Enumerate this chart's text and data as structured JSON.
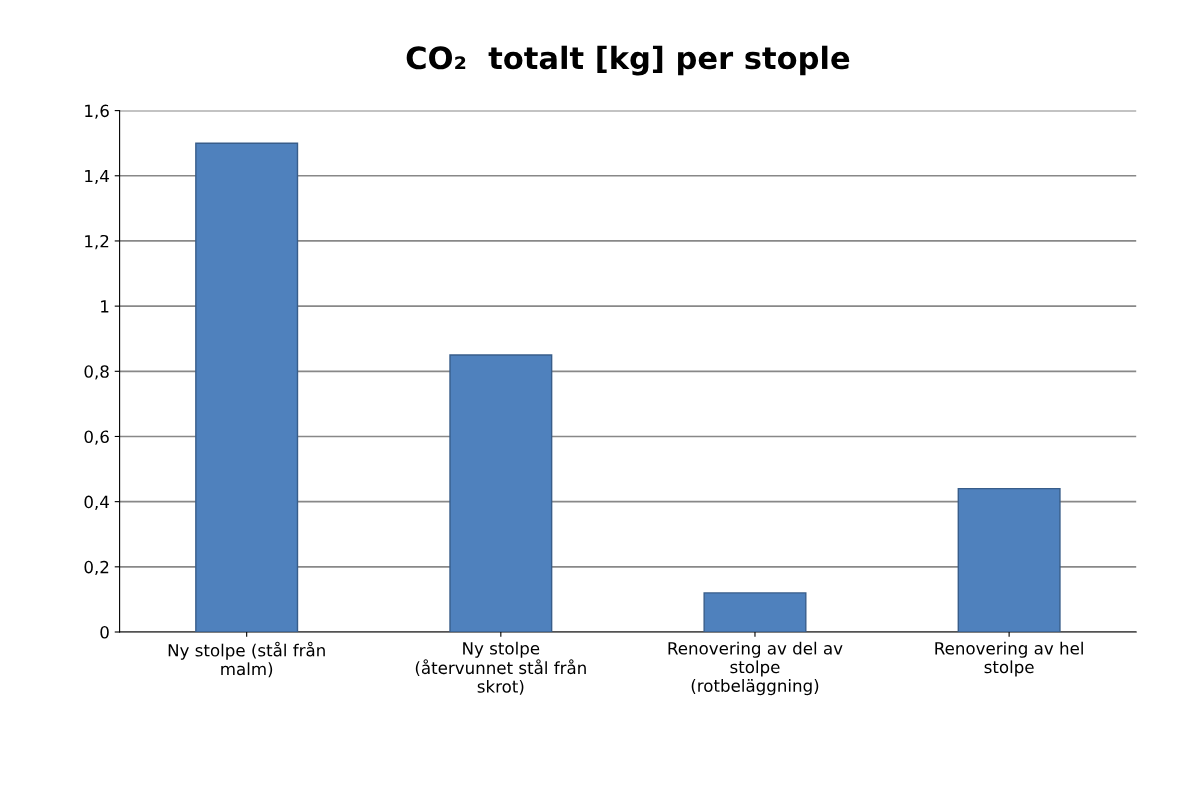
{
  "chart_data": {
    "type": "bar",
    "title": "CO₂  totalt [kg] per stople",
    "categories": [
      "Ny stolpe (stål från\nmalm)",
      "Ny stolpe\n(återvunnet stål från\nskrot)",
      "Renovering av del av\nstolpe\n(rotbeläggning)",
      "Renovering av hel\nstolpe"
    ],
    "values": [
      1.5,
      0.85,
      0.12,
      0.44
    ],
    "color": "#4f81bd",
    "ylim": [
      0,
      1.6
    ],
    "yticks": [
      0,
      {
        "value": 0.2,
        "label": "0,2"
      },
      {
        "value": 0.4,
        "label": "0,4"
      },
      {
        "value": 0.6,
        "label": "0,6"
      },
      {
        "value": 0.8,
        "label": "0,8"
      },
      1,
      {
        "value": 1.2,
        "label": "1,2"
      },
      {
        "value": 1.4,
        "label": "1,4"
      },
      {
        "value": 1.6,
        "label": "1,6"
      }
    ],
    "grid": "y",
    "legend": false
  }
}
